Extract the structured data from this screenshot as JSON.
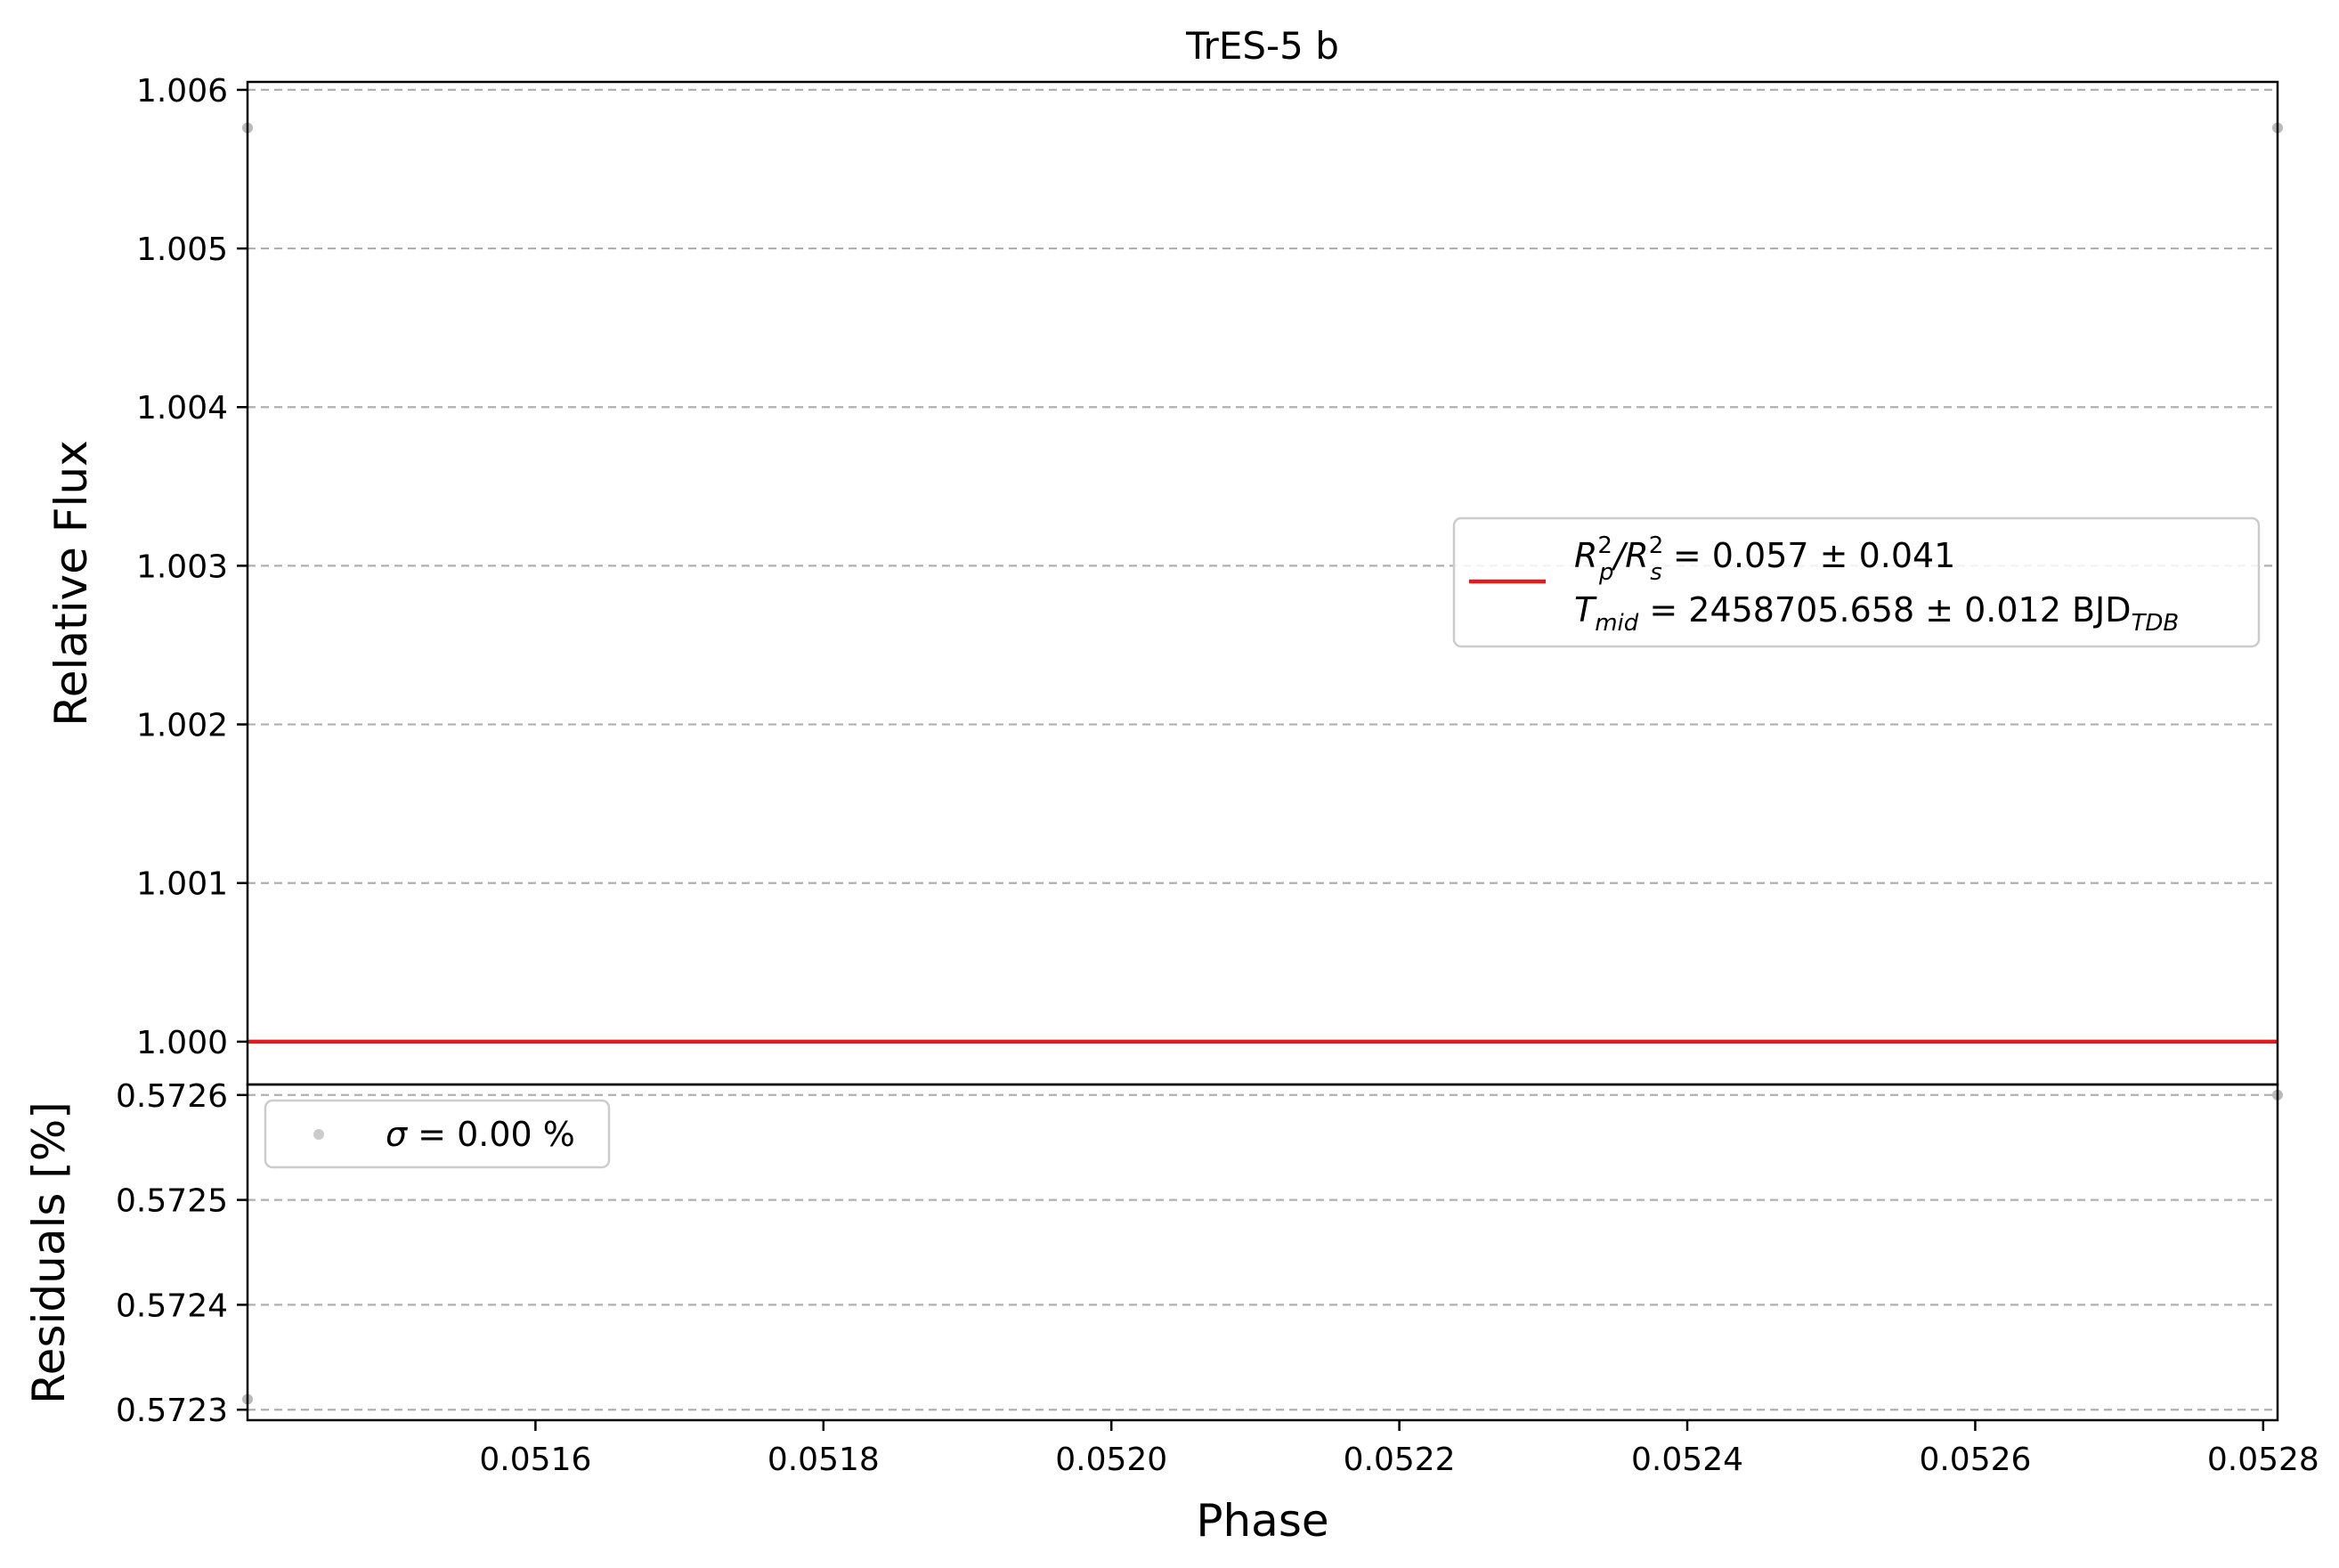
{
  "chart_data": {
    "type": "line",
    "title": "TrES-5 b",
    "xlabel": "Phase",
    "xlim": [
      0.0514,
      0.05281
    ],
    "xticks": [
      "0.0516",
      "0.0518",
      "0.0520",
      "0.0522",
      "0.0524",
      "0.0526",
      "0.0528"
    ],
    "xtick_values": [
      0.0516,
      0.0518,
      0.052,
      0.0522,
      0.0524,
      0.0526,
      0.0528
    ],
    "grid": true,
    "panels": [
      {
        "id": "flux",
        "ylabel": "Relative Flux",
        "ylim": [
          0.99973,
          1.00605
        ],
        "yticks": [
          "1.000",
          "1.001",
          "1.002",
          "1.003",
          "1.004",
          "1.005",
          "1.006"
        ],
        "ytick_values": [
          1.0,
          1.001,
          1.002,
          1.003,
          1.004,
          1.005,
          1.006
        ],
        "series": [
          {
            "label_parts": {
              "lhs_R": "R",
              "sup_a": "2",
              "sub_a": "p",
              "slash": "/R",
              "sup_b": "2",
              "sub_b": "s",
              "rhs": " = 0.057 ± 0.041"
            },
            "kind": "line",
            "color": "#e41a1c",
            "x": [
              0.0514,
              0.05281
            ],
            "y": [
              1.0,
              1.0
            ]
          },
          {
            "label_parts": {
              "lhs_T": "T",
              "sub_a": "mid",
              "rhs": " = 2458705.658 ± 0.012 BJD",
              "sub_b": "TDB"
            },
            "kind": "line",
            "color": "#e41a1c"
          },
          {
            "kind": "scatter",
            "color": "#a9a9a9",
            "x": [
              0.0514,
              0.05281
            ],
            "y": [
              1.00576,
              1.00576
            ]
          }
        ],
        "legend_placement": "center-right"
      },
      {
        "id": "residuals",
        "ylabel": "Residuals [%]",
        "ylim": [
          0.57229,
          0.57261
        ],
        "yticks": [
          "0.5723",
          "0.5724",
          "0.5725",
          "0.5726"
        ],
        "ytick_values": [
          0.5723,
          0.5724,
          0.5725,
          0.5726
        ],
        "series": [
          {
            "label_parts": {
              "sigma": "σ",
              "rhs": " = 0.00 %"
            },
            "kind": "scatter",
            "color": "#a9a9a9",
            "x": [
              0.0514,
              0.05281
            ],
            "y": [
              0.57231,
              0.5726
            ]
          }
        ],
        "legend_placement": "upper-left"
      }
    ]
  }
}
